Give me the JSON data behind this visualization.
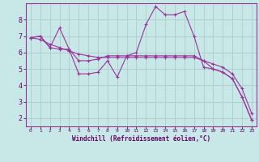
{
  "background_color": "#c8e8e8",
  "grid_color": "#b0d0d0",
  "line_color": "#993399",
  "spine_color": "#993399",
  "xlabel": "Windchill (Refroidissement éolien,°C)",
  "xlim": [
    -0.5,
    23.5
  ],
  "ylim": [
    1.5,
    9.0
  ],
  "yticks": [
    2,
    3,
    4,
    5,
    6,
    7,
    8
  ],
  "xticks": [
    0,
    1,
    2,
    3,
    4,
    5,
    6,
    7,
    8,
    9,
    10,
    11,
    12,
    13,
    14,
    15,
    16,
    17,
    18,
    19,
    20,
    21,
    22,
    23
  ],
  "series": [
    {
      "x": [
        0,
        1,
        2,
        3,
        4,
        5,
        6,
        7,
        8,
        9,
        10,
        11,
        12,
        13,
        14,
        15,
        16,
        17,
        18,
        19,
        20,
        21,
        22,
        23
      ],
      "y": [
        6.9,
        7.0,
        6.3,
        7.5,
        6.2,
        4.7,
        4.7,
        4.8,
        5.5,
        4.5,
        5.8,
        6.0,
        7.7,
        8.8,
        8.3,
        8.3,
        8.5,
        7.0,
        5.1,
        5.0,
        4.8,
        4.4,
        3.3,
        1.9
      ]
    },
    {
      "x": [
        0,
        1,
        2,
        3,
        4,
        5,
        6,
        7,
        8,
        9,
        10,
        11,
        12,
        13,
        14,
        15,
        16,
        17,
        18,
        19,
        20,
        21,
        22,
        23
      ],
      "y": [
        6.9,
        6.8,
        6.5,
        6.3,
        6.1,
        5.9,
        5.8,
        5.7,
        5.7,
        5.7,
        5.7,
        5.7,
        5.7,
        5.7,
        5.7,
        5.7,
        5.7,
        5.7,
        5.5,
        5.3,
        5.1,
        4.7,
        3.8,
        2.3
      ]
    },
    {
      "x": [
        0,
        1,
        2,
        3,
        4,
        5,
        6,
        7,
        8,
        9,
        10,
        11,
        12,
        13,
        14,
        15,
        16,
        17,
        18,
        19,
        20,
        21,
        22,
        23
      ],
      "y": [
        6.9,
        7.0,
        6.3,
        6.2,
        6.2,
        5.5,
        5.5,
        5.6,
        5.8,
        5.8,
        5.8,
        5.8,
        5.8,
        5.8,
        5.8,
        5.8,
        5.8,
        5.8,
        5.5,
        5.0,
        4.8,
        4.4,
        3.3,
        1.9
      ]
    }
  ]
}
